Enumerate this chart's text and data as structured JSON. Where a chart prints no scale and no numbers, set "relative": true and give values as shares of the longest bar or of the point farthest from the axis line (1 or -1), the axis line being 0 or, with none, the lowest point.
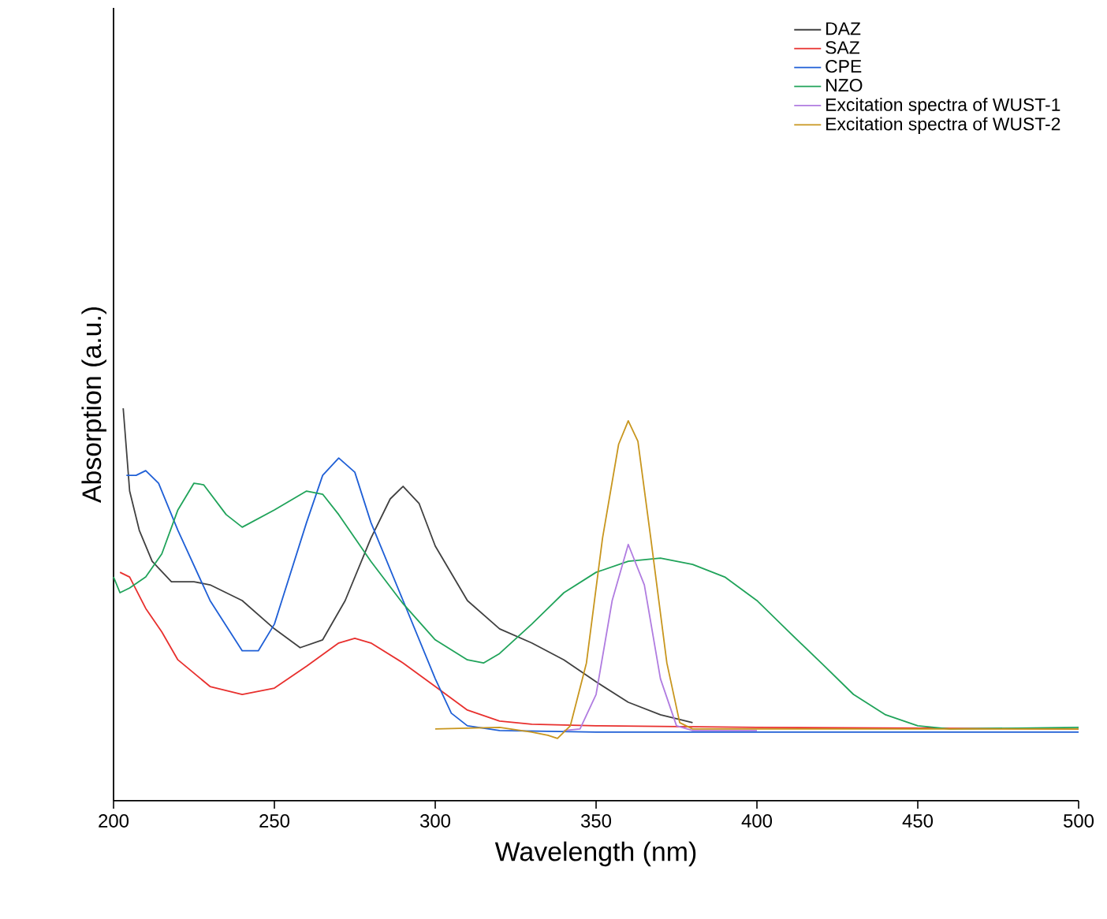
{
  "chart_data": {
    "type": "line",
    "xlabel": "Wavelength (nm)",
    "ylabel": "Absorption (a.u.)",
    "relative": true,
    "xlim": [
      200,
      500
    ],
    "xticks": [
      200,
      250,
      300,
      350,
      400,
      450,
      500
    ],
    "legend": "top right",
    "marker": "none",
    "line_style": "solid",
    "grid": false,
    "tick_labels": "x",
    "series": [
      {
        "name": "DAZ",
        "color": "#404040",
        "x": [
          203,
          205,
          208,
          212,
          218,
          225,
          230,
          240,
          250,
          258,
          265,
          272,
          280,
          286,
          290,
          295,
          300,
          310,
          320,
          330,
          340,
          350,
          360,
          370,
          380
        ],
        "values": [
          1.0,
          0.789,
          0.689,
          0.61,
          0.558,
          0.558,
          0.55,
          0.51,
          0.438,
          0.39,
          0.41,
          0.51,
          0.669,
          0.769,
          0.801,
          0.757,
          0.649,
          0.51,
          0.438,
          0.402,
          0.359,
          0.303,
          0.251,
          0.219,
          0.199
        ]
      },
      {
        "name": "SAZ",
        "color": "#e8302e",
        "x": [
          202,
          205,
          210,
          215,
          220,
          230,
          240,
          250,
          260,
          270,
          275,
          280,
          290,
          300,
          310,
          320,
          330,
          350,
          400,
          500
        ],
        "values": [
          0.582,
          0.57,
          0.49,
          0.43,
          0.359,
          0.291,
          0.271,
          0.287,
          0.343,
          0.402,
          0.414,
          0.402,
          0.351,
          0.291,
          0.231,
          0.203,
          0.195,
          0.191,
          0.187,
          0.183
        ]
      },
      {
        "name": "CPE",
        "color": "#1f5fd6",
        "x": [
          204,
          207,
          210,
          214,
          220,
          230,
          240,
          245,
          250,
          260,
          265,
          270,
          275,
          280,
          290,
          300,
          305,
          310,
          320,
          350,
          400,
          500
        ],
        "values": [
          0.829,
          0.829,
          0.841,
          0.809,
          0.689,
          0.51,
          0.382,
          0.382,
          0.45,
          0.709,
          0.829,
          0.873,
          0.837,
          0.709,
          0.51,
          0.311,
          0.223,
          0.191,
          0.179,
          0.175,
          0.175,
          0.175
        ]
      },
      {
        "name": "NZO",
        "color": "#20a35a",
        "x": [
          200,
          202,
          205,
          210,
          215,
          220,
          225,
          228,
          235,
          240,
          250,
          260,
          265,
          270,
          280,
          290,
          300,
          310,
          315,
          320,
          330,
          340,
          350,
          360,
          370,
          380,
          390,
          400,
          410,
          420,
          430,
          440,
          450,
          460,
          500
        ],
        "values": [
          0.57,
          0.53,
          0.542,
          0.57,
          0.629,
          0.741,
          0.809,
          0.805,
          0.729,
          0.697,
          0.741,
          0.789,
          0.781,
          0.729,
          0.61,
          0.502,
          0.41,
          0.359,
          0.351,
          0.375,
          0.45,
          0.53,
          0.582,
          0.61,
          0.618,
          0.602,
          0.57,
          0.51,
          0.43,
          0.351,
          0.271,
          0.219,
          0.191,
          0.183,
          0.187
        ]
      },
      {
        "name": "Excitation spectra of WUST-1",
        "color": "#b07ce0",
        "x": [
          340,
          345,
          350,
          355,
          360,
          365,
          370,
          375,
          380,
          400
        ],
        "values": [
          0.179,
          0.183,
          0.271,
          0.51,
          0.653,
          0.55,
          0.311,
          0.191,
          0.179,
          0.179
        ]
      },
      {
        "name": "Excitation spectra of WUST-2",
        "color": "#c8961e",
        "x": [
          300,
          320,
          330,
          335,
          338,
          342,
          347,
          352,
          357,
          360,
          363,
          367,
          372,
          376,
          380,
          400,
          450,
          500
        ],
        "values": [
          0.183,
          0.187,
          0.175,
          0.167,
          0.159,
          0.191,
          0.351,
          0.669,
          0.908,
          0.968,
          0.916,
          0.669,
          0.351,
          0.199,
          0.183,
          0.183,
          0.183,
          0.183
        ]
      }
    ]
  }
}
